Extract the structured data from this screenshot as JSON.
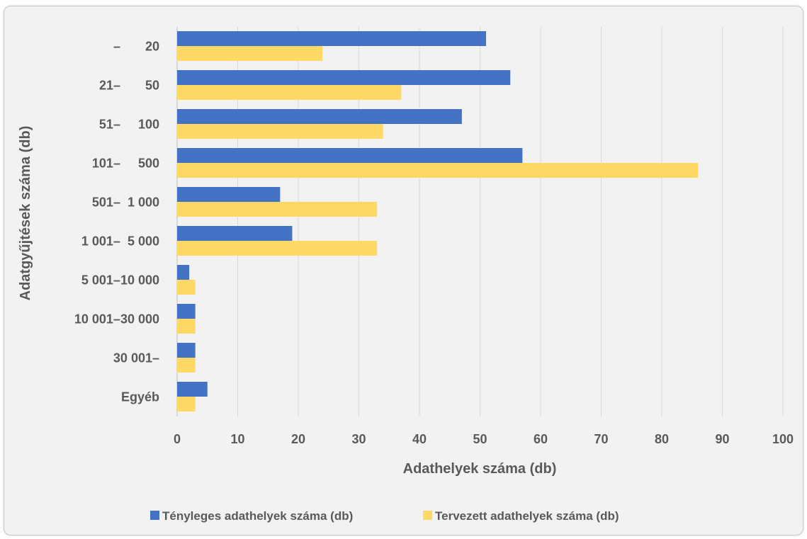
{
  "chart_data": {
    "type": "bar",
    "orientation": "horizontal",
    "categories": [
      "–       20",
      "21–       50",
      "51–     100",
      "101–     500",
      "501–  1 000",
      "1 001–  5 000",
      "5 001–10 000",
      "10 001–30 000",
      "30 001–",
      "Egyéb"
    ],
    "series": [
      {
        "name": "Tényleges adathelyek száma (db)",
        "color": "#4472c4",
        "values": [
          51,
          55,
          47,
          57,
          17,
          19,
          2,
          3,
          3,
          5
        ]
      },
      {
        "name": "Tervezett adathelyek száma (db)",
        "color": "#ffd966",
        "values": [
          24,
          37,
          34,
          86,
          33,
          33,
          3,
          3,
          3,
          3
        ]
      }
    ],
    "xlabel": "Adathelyek száma (db)",
    "ylabel": "Adatgyűjtések száma (db)",
    "xlim": [
      0,
      100
    ],
    "xticks": [
      0,
      10,
      20,
      30,
      40,
      50,
      60,
      70,
      80,
      90,
      100
    ],
    "grid": "vertical",
    "legend": "bottom"
  }
}
